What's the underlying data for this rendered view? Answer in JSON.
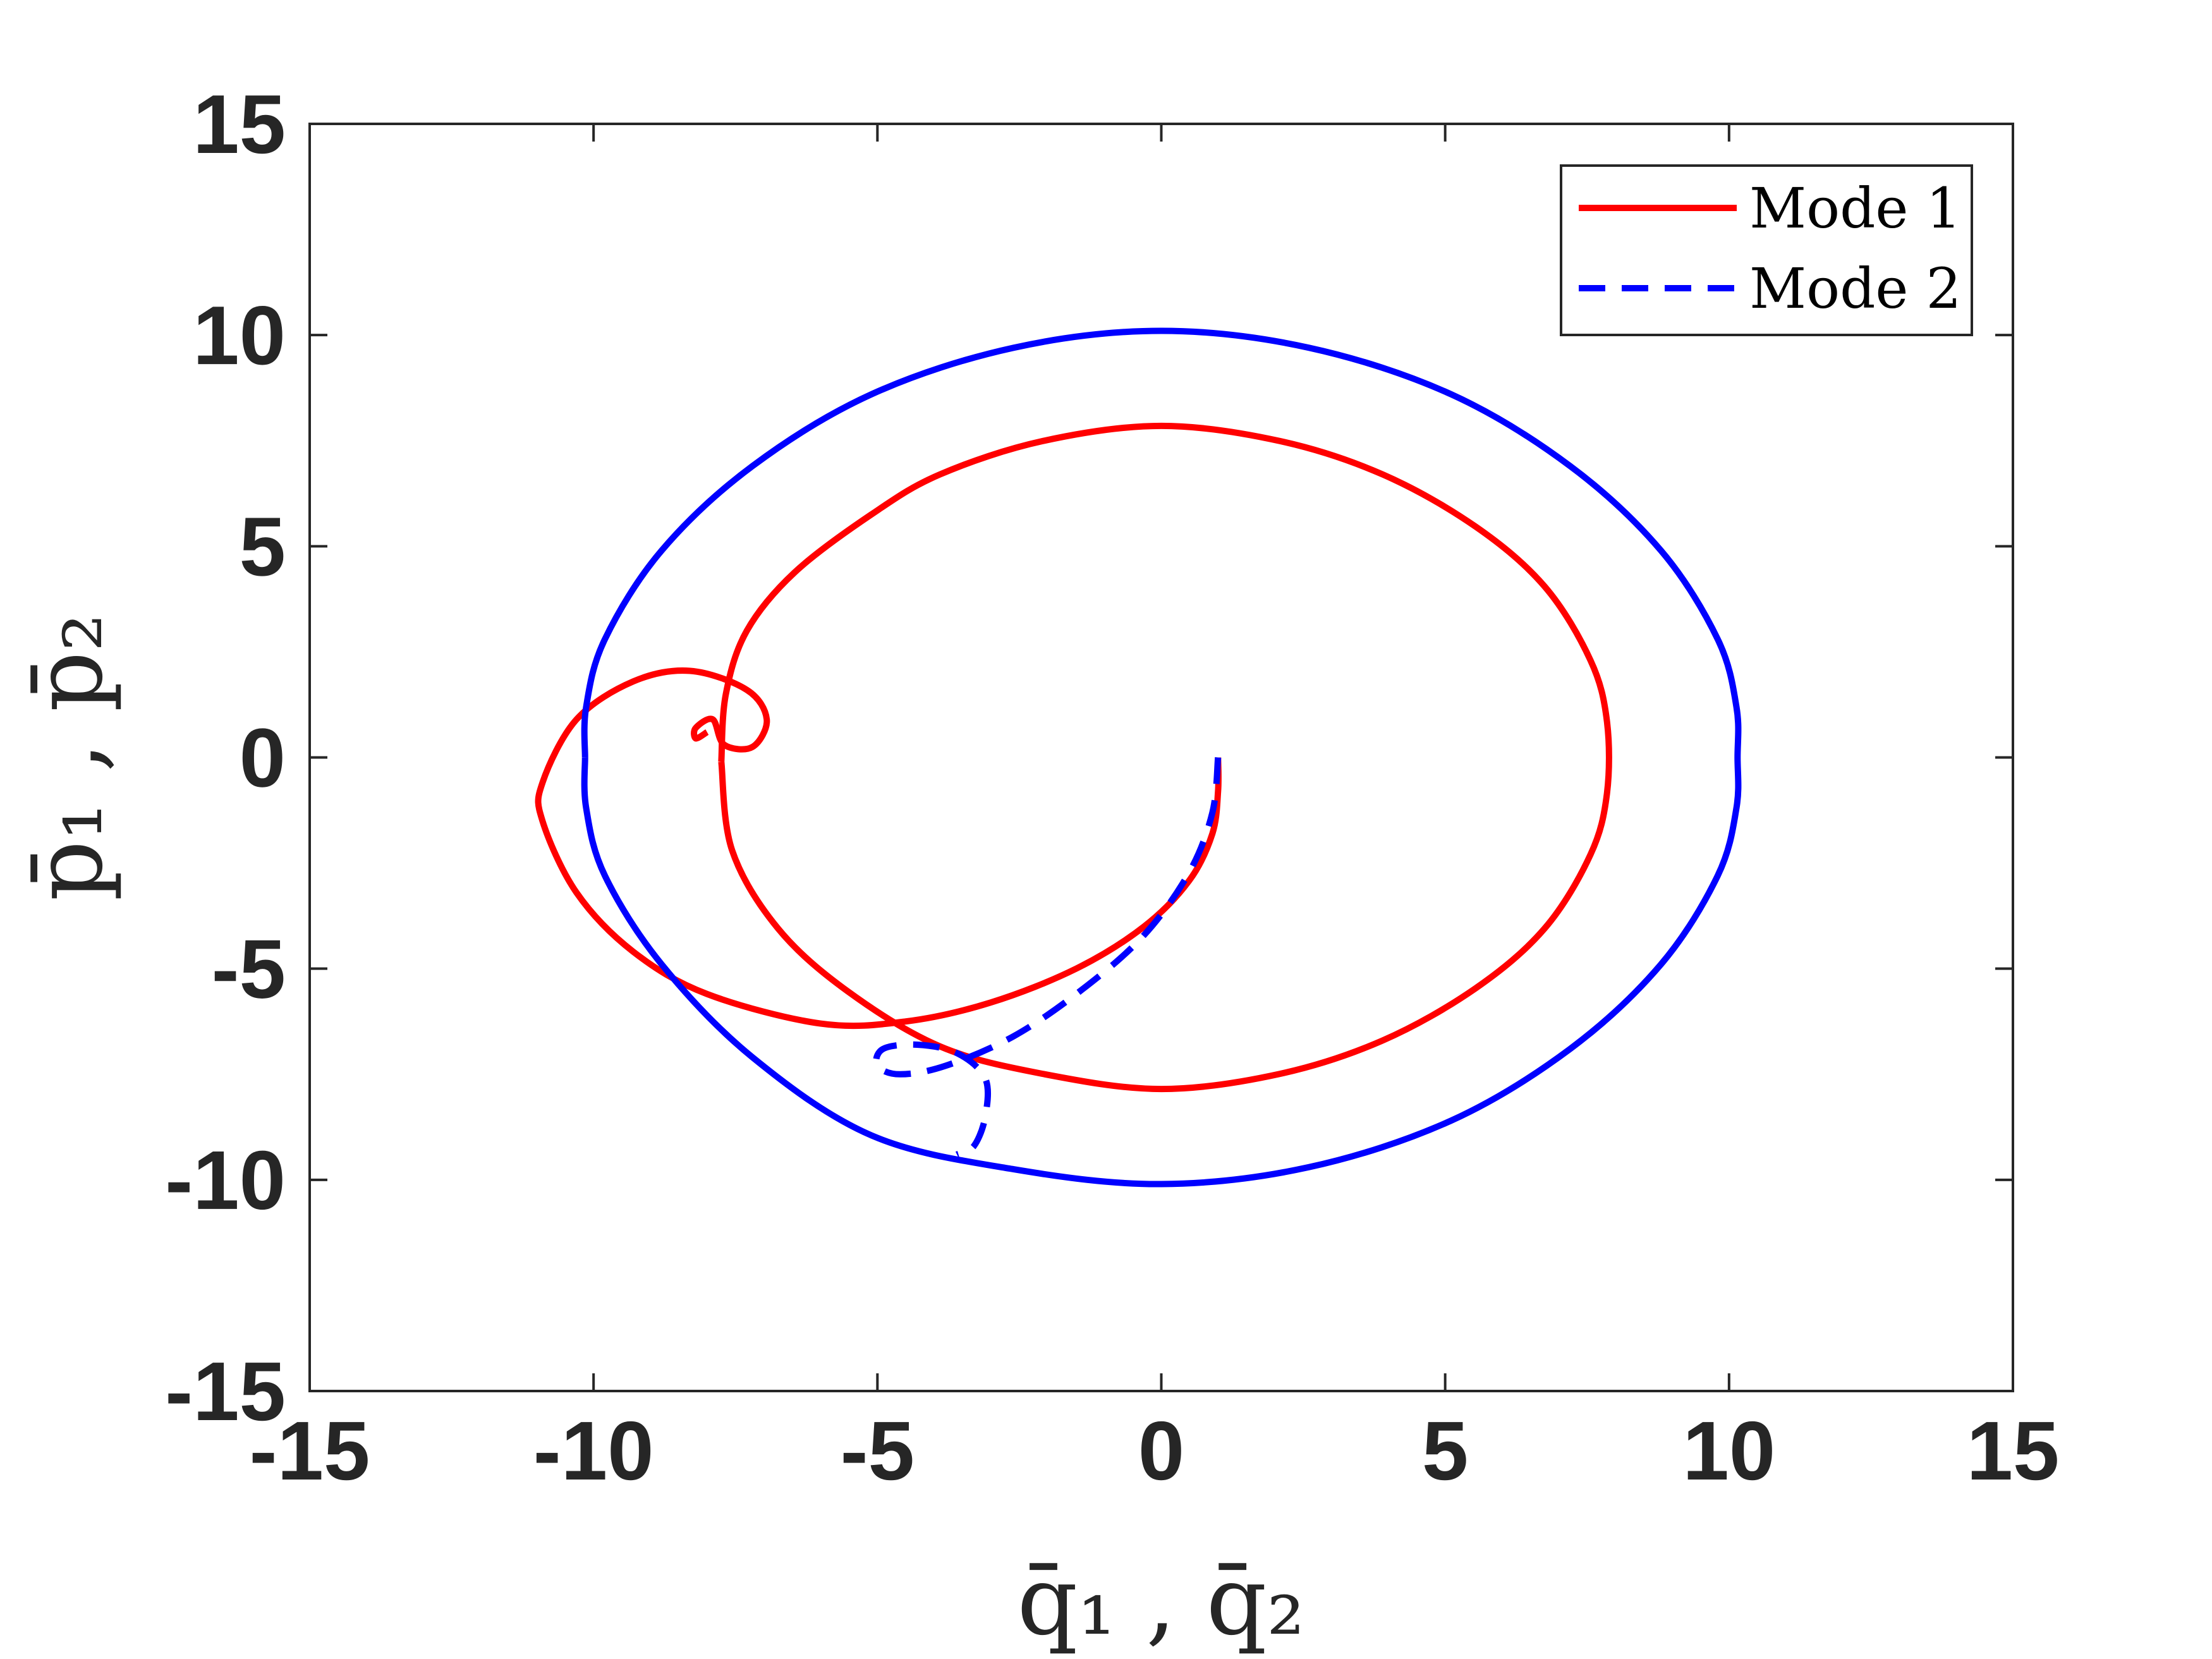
{
  "chart_data": {
    "type": "line",
    "title": "",
    "xlabel": "q̄₁ , q̄₂",
    "ylabel": "p̄₁ , p̄₂",
    "xlim": [
      -15,
      15
    ],
    "ylim": [
      -15,
      15
    ],
    "xticks": [
      "-15",
      "-10",
      "-5",
      "0",
      "5",
      "10",
      "15"
    ],
    "yticks": [
      "15",
      "10",
      "5",
      "0",
      "-5",
      "-10",
      "-15"
    ],
    "grid": false,
    "legend": {
      "placement": "top-right"
    },
    "series": [
      {
        "name": "Mode 1",
        "color": "#ff0000",
        "style": "solid",
        "segments": [
          [
            [
              -8.0,
              0.6
            ],
            [
              -8.2,
              0.45
            ],
            [
              -8.2,
              0.7
            ],
            [
              -7.9,
              0.9
            ],
            [
              -7.7,
              0.3
            ],
            [
              -7.2,
              0.25
            ],
            [
              -6.95,
              0.9
            ],
            [
              -7.3,
              1.6
            ],
            [
              -8.3,
              2.05
            ],
            [
              -9.3,
              1.8
            ],
            [
              -10.3,
              0.9
            ],
            [
              -10.9,
              -0.6
            ],
            [
              -10.9,
              -1.5
            ],
            [
              -10.3,
              -3.2
            ],
            [
              -9.3,
              -4.6
            ],
            [
              -8.0,
              -5.6
            ],
            [
              -6.0,
              -6.3
            ],
            [
              -4.5,
              -6.25
            ],
            [
              -3.0,
              -5.8
            ],
            [
              -1.5,
              -5.0
            ],
            [
              -0.3,
              -4.0
            ],
            [
              0.5,
              -2.9
            ],
            [
              0.9,
              -1.8
            ],
            [
              1.0,
              -0.8
            ],
            [
              1.0,
              0.0
            ]
          ],
          [
            [
              -7.75,
              -0.1
            ],
            [
              -7.67,
              1.5
            ],
            [
              -7.3,
              3.0
            ],
            [
              -6.46,
              4.38
            ],
            [
              -5.11,
              5.75
            ],
            [
              -3.9,
              6.7
            ],
            [
              -2.09,
              7.49
            ],
            [
              0.0,
              7.85
            ],
            [
              2.09,
              7.49
            ],
            [
              3.9,
              6.7
            ],
            [
              5.53,
              5.47
            ],
            [
              6.75,
              4.05
            ],
            [
              7.56,
              2.3
            ],
            [
              7.85,
              0.85
            ],
            [
              7.85,
              -0.85
            ],
            [
              7.56,
              -2.3
            ],
            [
              6.75,
              -4.05
            ],
            [
              5.53,
              -5.47
            ],
            [
              3.9,
              -6.7
            ],
            [
              2.09,
              -7.49
            ],
            [
              0.0,
              -7.85
            ],
            [
              -2.09,
              -7.49
            ],
            [
              -3.9,
              -6.84
            ],
            [
              -5.53,
              -5.53
            ],
            [
              -6.75,
              -4.05
            ],
            [
              -7.56,
              -2.2
            ],
            [
              -7.75,
              -0.1
            ]
          ]
        ]
      },
      {
        "name": "Mode 2",
        "color": "#0000ff",
        "style": "dashed",
        "segments": [
          [
            [
              1.0,
              0.0
            ],
            [
              0.9,
              -1.3
            ],
            [
              0.5,
              -2.7
            ],
            [
              -0.3,
              -4.2
            ],
            [
              -1.4,
              -5.5
            ],
            [
              -2.6,
              -6.6
            ],
            [
              -3.8,
              -7.3
            ],
            [
              -4.6,
              -7.5
            ],
            [
              -5.0,
              -7.3
            ],
            [
              -4.9,
              -6.9
            ],
            [
              -4.3,
              -6.8
            ],
            [
              -3.6,
              -7.0
            ],
            [
              -3.1,
              -7.6
            ],
            [
              -3.1,
              -8.5
            ],
            [
              -3.3,
              -9.2
            ],
            [
              -3.6,
              -9.4
            ]
          ],
          [
            [
              -10.15,
              0.0
            ],
            [
              -10.13,
              1.2
            ],
            [
              -9.8,
              2.8
            ],
            [
              -8.8,
              4.9
            ],
            [
              -7.2,
              6.9
            ],
            [
              -5.1,
              8.6
            ],
            [
              -2.6,
              9.7
            ],
            [
              0.0,
              10.1
            ],
            [
              2.6,
              9.7
            ],
            [
              5.1,
              8.6
            ],
            [
              7.2,
              6.9
            ],
            [
              8.8,
              4.9
            ],
            [
              9.8,
              2.8
            ],
            [
              10.13,
              1.2
            ],
            [
              10.15,
              0.0
            ],
            [
              10.13,
              -1.2
            ],
            [
              9.8,
              -2.8
            ],
            [
              8.8,
              -4.9
            ],
            [
              7.2,
              -6.9
            ],
            [
              5.1,
              -8.6
            ],
            [
              2.6,
              -9.7
            ],
            [
              0.0,
              -10.1
            ],
            [
              -2.6,
              -9.75
            ],
            [
              -5.1,
              -8.95
            ],
            [
              -7.2,
              -7.1
            ],
            [
              -8.8,
              -4.9
            ],
            [
              -9.8,
              -2.8
            ],
            [
              -10.13,
              -1.2
            ],
            [
              -10.15,
              0.0
            ]
          ]
        ]
      }
    ]
  }
}
